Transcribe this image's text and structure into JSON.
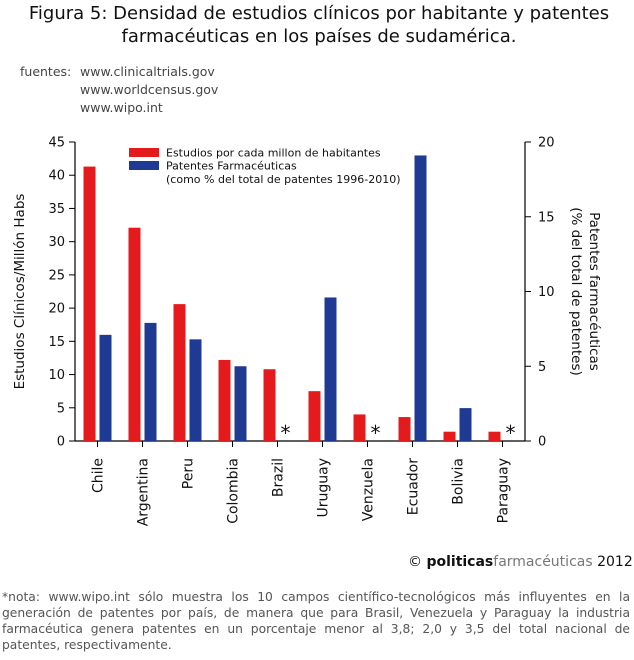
{
  "title": {
    "figure_label": "Figura 5:",
    "line1": "Densidad de estudios clínicos por habitante y patentes",
    "line2": "farmacéuticas en los países de sudamérica."
  },
  "sources": {
    "label": "fuentes:",
    "items": [
      "www.clinicaltrials.gov",
      "www.worldcensus.gov",
      "www.wipo.int"
    ]
  },
  "credit": {
    "symbol": "©",
    "brand_bold": "politicas",
    "brand_light": "farmacéuticas",
    "year": "2012"
  },
  "footnote": "*nota: www.wipo.int sólo muestra los 10 campos científico-tecnológicos más influyentes en la generación de patentes por país, de manera que para Brasil, Venezuela y Paraguay la industria farmacéutica genera patentes en un porcentaje menor al 3,8; 2,0 y 3,5 del total nacional de patentes, respectivamente.",
  "chart_data": {
    "type": "bar",
    "categories": [
      "Chile",
      "Argentina",
      "Peru",
      "Colombia",
      "Brazil",
      "Uruguay",
      "Venzuela",
      "Ecuador",
      "Bolivia",
      "Paraguay"
    ],
    "series": [
      {
        "name": "Estudios por cada millon de habitantes",
        "axis": "left",
        "color": "#e41a1c",
        "values": [
          41.3,
          32.1,
          20.6,
          12.2,
          10.8,
          7.5,
          4.0,
          3.6,
          1.4,
          1.4
        ]
      },
      {
        "name": "Patentes Farmacéuticas",
        "axis": "right",
        "color": "#1f3a93",
        "values": [
          7.1,
          7.9,
          6.8,
          5.0,
          null,
          9.6,
          null,
          19.1,
          2.2,
          null
        ]
      }
    ],
    "legend_subtitle": "(como % del total de patentes 1996-2010)",
    "missing_marker": "*",
    "ylabel": "Estudios Clínicos/Millón Habs",
    "ylabel_right": [
      "Patentes farmacéuticas",
      "(% del total de patentes)"
    ],
    "ylim": [
      0,
      45
    ],
    "yticks": [
      "0",
      "5",
      "10",
      "15",
      "20",
      "25",
      "30",
      "35",
      "40",
      "45"
    ],
    "ylim_right": [
      0,
      20
    ],
    "yticks_right": [
      "0",
      "5",
      "10",
      "15",
      "20"
    ],
    "legend_position": "top-left",
    "grid": false
  }
}
